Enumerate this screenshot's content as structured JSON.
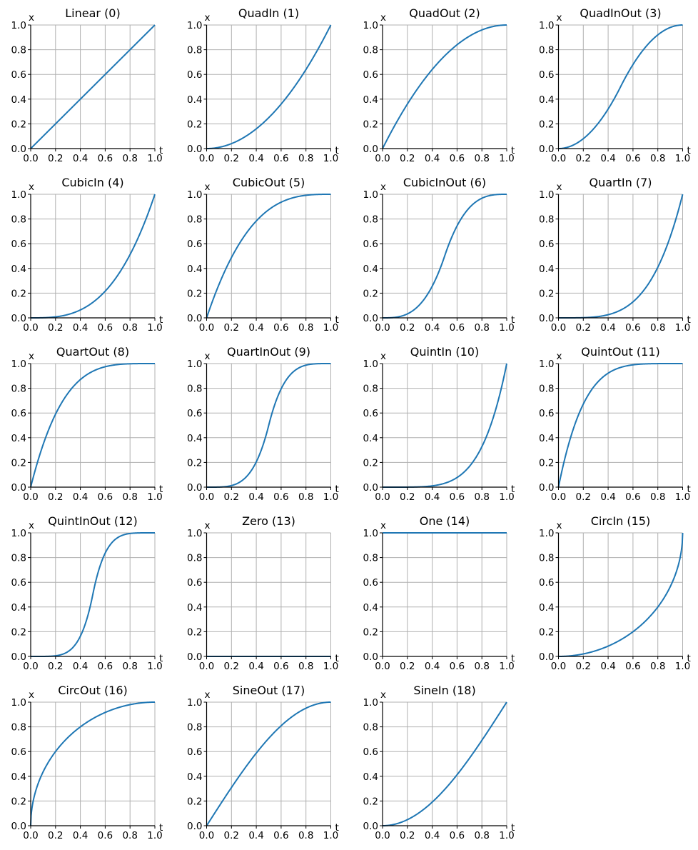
{
  "figure": {
    "ncols": 4,
    "nrows": 5,
    "line_color": "#1f77b4",
    "grid_color": "#b0b0b0"
  },
  "chart_data": [
    {
      "type": "line",
      "title": "Linear (0)",
      "easing": "linear",
      "xlabel": "t",
      "ylabel": "x",
      "xlim": [
        0,
        1
      ],
      "ylim": [
        0,
        1
      ],
      "xticks": [
        "0.0",
        "0.2",
        "0.4",
        "0.6",
        "0.8",
        "1.0"
      ],
      "yticks": [
        "0.0",
        "0.2",
        "0.4",
        "0.6",
        "0.8",
        "1.0"
      ],
      "grid": true
    },
    {
      "type": "line",
      "title": "QuadIn (1)",
      "easing": "quadIn",
      "xlabel": "t",
      "ylabel": "x",
      "xlim": [
        0,
        1
      ],
      "ylim": [
        0,
        1
      ],
      "xticks": [
        "0.0",
        "0.2",
        "0.4",
        "0.6",
        "0.8",
        "1.0"
      ],
      "yticks": [
        "0.0",
        "0.2",
        "0.4",
        "0.6",
        "0.8",
        "1.0"
      ],
      "grid": true
    },
    {
      "type": "line",
      "title": "QuadOut (2)",
      "easing": "quadOut",
      "xlabel": "t",
      "ylabel": "x",
      "xlim": [
        0,
        1
      ],
      "ylim": [
        0,
        1
      ],
      "xticks": [
        "0.0",
        "0.2",
        "0.4",
        "0.6",
        "0.8",
        "1.0"
      ],
      "yticks": [
        "0.0",
        "0.2",
        "0.4",
        "0.6",
        "0.8",
        "1.0"
      ],
      "grid": true
    },
    {
      "type": "line",
      "title": "QuadInOut (3)",
      "easing": "quadInOut",
      "xlabel": "t",
      "ylabel": "x",
      "xlim": [
        0,
        1
      ],
      "ylim": [
        0,
        1
      ],
      "xticks": [
        "0.0",
        "0.2",
        "0.4",
        "0.6",
        "0.8",
        "1.0"
      ],
      "yticks": [
        "0.0",
        "0.2",
        "0.4",
        "0.6",
        "0.8",
        "1.0"
      ],
      "grid": true
    },
    {
      "type": "line",
      "title": "CubicIn (4)",
      "easing": "cubicIn",
      "xlabel": "t",
      "ylabel": "x",
      "xlim": [
        0,
        1
      ],
      "ylim": [
        0,
        1
      ],
      "xticks": [
        "0.0",
        "0.2",
        "0.4",
        "0.6",
        "0.8",
        "1.0"
      ],
      "yticks": [
        "0.0",
        "0.2",
        "0.4",
        "0.6",
        "0.8",
        "1.0"
      ],
      "grid": true
    },
    {
      "type": "line",
      "title": "CubicOut (5)",
      "easing": "cubicOut",
      "xlabel": "t",
      "ylabel": "x",
      "xlim": [
        0,
        1
      ],
      "ylim": [
        0,
        1
      ],
      "xticks": [
        "0.0",
        "0.2",
        "0.4",
        "0.6",
        "0.8",
        "1.0"
      ],
      "yticks": [
        "0.0",
        "0.2",
        "0.4",
        "0.6",
        "0.8",
        "1.0"
      ],
      "grid": true
    },
    {
      "type": "line",
      "title": "CubicInOut (6)",
      "easing": "cubicInOut",
      "xlabel": "t",
      "ylabel": "x",
      "xlim": [
        0,
        1
      ],
      "ylim": [
        0,
        1
      ],
      "xticks": [
        "0.0",
        "0.2",
        "0.4",
        "0.6",
        "0.8",
        "1.0"
      ],
      "yticks": [
        "0.0",
        "0.2",
        "0.4",
        "0.6",
        "0.8",
        "1.0"
      ],
      "grid": true
    },
    {
      "type": "line",
      "title": "QuartIn (7)",
      "easing": "quartIn",
      "xlabel": "t",
      "ylabel": "x",
      "xlim": [
        0,
        1
      ],
      "ylim": [
        0,
        1
      ],
      "xticks": [
        "0.0",
        "0.2",
        "0.4",
        "0.6",
        "0.8",
        "1.0"
      ],
      "yticks": [
        "0.0",
        "0.2",
        "0.4",
        "0.6",
        "0.8",
        "1.0"
      ],
      "grid": true
    },
    {
      "type": "line",
      "title": "QuartOut (8)",
      "easing": "quartOut",
      "xlabel": "t",
      "ylabel": "x",
      "xlim": [
        0,
        1
      ],
      "ylim": [
        0,
        1
      ],
      "xticks": [
        "0.0",
        "0.2",
        "0.4",
        "0.6",
        "0.8",
        "1.0"
      ],
      "yticks": [
        "0.0",
        "0.2",
        "0.4",
        "0.6",
        "0.8",
        "1.0"
      ],
      "grid": true
    },
    {
      "type": "line",
      "title": "QuartInOut (9)",
      "easing": "quartInOut",
      "xlabel": "t",
      "ylabel": "x",
      "xlim": [
        0,
        1
      ],
      "ylim": [
        0,
        1
      ],
      "xticks": [
        "0.0",
        "0.2",
        "0.4",
        "0.6",
        "0.8",
        "1.0"
      ],
      "yticks": [
        "0.0",
        "0.2",
        "0.4",
        "0.6",
        "0.8",
        "1.0"
      ],
      "grid": true
    },
    {
      "type": "line",
      "title": "QuintIn (10)",
      "easing": "quintIn",
      "xlabel": "t",
      "ylabel": "x",
      "xlim": [
        0,
        1
      ],
      "ylim": [
        0,
        1
      ],
      "xticks": [
        "0.0",
        "0.2",
        "0.4",
        "0.6",
        "0.8",
        "1.0"
      ],
      "yticks": [
        "0.0",
        "0.2",
        "0.4",
        "0.6",
        "0.8",
        "1.0"
      ],
      "grid": true
    },
    {
      "type": "line",
      "title": "QuintOut (11)",
      "easing": "quintOut",
      "xlabel": "t",
      "ylabel": "x",
      "xlim": [
        0,
        1
      ],
      "ylim": [
        0,
        1
      ],
      "xticks": [
        "0.0",
        "0.2",
        "0.4",
        "0.6",
        "0.8",
        "1.0"
      ],
      "yticks": [
        "0.0",
        "0.2",
        "0.4",
        "0.6",
        "0.8",
        "1.0"
      ],
      "grid": true
    },
    {
      "type": "line",
      "title": "QuintInOut (12)",
      "easing": "quintInOut",
      "xlabel": "t",
      "ylabel": "x",
      "xlim": [
        0,
        1
      ],
      "ylim": [
        0,
        1
      ],
      "xticks": [
        "0.0",
        "0.2",
        "0.4",
        "0.6",
        "0.8",
        "1.0"
      ],
      "yticks": [
        "0.0",
        "0.2",
        "0.4",
        "0.6",
        "0.8",
        "1.0"
      ],
      "grid": true
    },
    {
      "type": "line",
      "title": "Zero (13)",
      "easing": "zero",
      "xlabel": "t",
      "ylabel": "x",
      "xlim": [
        0,
        1
      ],
      "ylim": [
        0,
        1
      ],
      "xticks": [
        "0.0",
        "0.2",
        "0.4",
        "0.6",
        "0.8",
        "1.0"
      ],
      "yticks": [
        "0.0",
        "0.2",
        "0.4",
        "0.6",
        "0.8",
        "1.0"
      ],
      "grid": true
    },
    {
      "type": "line",
      "title": "One (14)",
      "easing": "one",
      "xlabel": "t",
      "ylabel": "x",
      "xlim": [
        0,
        1
      ],
      "ylim": [
        0,
        1
      ],
      "xticks": [
        "0.0",
        "0.2",
        "0.4",
        "0.6",
        "0.8",
        "1.0"
      ],
      "yticks": [
        "0.0",
        "0.2",
        "0.4",
        "0.6",
        "0.8",
        "1.0"
      ],
      "grid": true
    },
    {
      "type": "line",
      "title": "CircIn (15)",
      "easing": "circIn",
      "xlabel": "t",
      "ylabel": "x",
      "xlim": [
        0,
        1
      ],
      "ylim": [
        0,
        1
      ],
      "xticks": [
        "0.0",
        "0.2",
        "0.4",
        "0.6",
        "0.8",
        "1.0"
      ],
      "yticks": [
        "0.0",
        "0.2",
        "0.4",
        "0.6",
        "0.8",
        "1.0"
      ],
      "grid": true
    },
    {
      "type": "line",
      "title": "CircOut (16)",
      "easing": "circOut",
      "xlabel": "t",
      "ylabel": "x",
      "xlim": [
        0,
        1
      ],
      "ylim": [
        0,
        1
      ],
      "xticks": [
        "0.0",
        "0.2",
        "0.4",
        "0.6",
        "0.8",
        "1.0"
      ],
      "yticks": [
        "0.0",
        "0.2",
        "0.4",
        "0.6",
        "0.8",
        "1.0"
      ],
      "grid": true
    },
    {
      "type": "line",
      "title": "SineOut (17)",
      "easing": "sineOut",
      "xlabel": "t",
      "ylabel": "x",
      "xlim": [
        0,
        1
      ],
      "ylim": [
        0,
        1
      ],
      "xticks": [
        "0.0",
        "0.2",
        "0.4",
        "0.6",
        "0.8",
        "1.0"
      ],
      "yticks": [
        "0.0",
        "0.2",
        "0.4",
        "0.6",
        "0.8",
        "1.0"
      ],
      "grid": true
    },
    {
      "type": "line",
      "title": "SineIn (18)",
      "easing": "sineIn",
      "xlabel": "t",
      "ylabel": "x",
      "xlim": [
        0,
        1
      ],
      "ylim": [
        0,
        1
      ],
      "xticks": [
        "0.0",
        "0.2",
        "0.4",
        "0.6",
        "0.8",
        "1.0"
      ],
      "yticks": [
        "0.0",
        "0.2",
        "0.4",
        "0.6",
        "0.8",
        "1.0"
      ],
      "grid": true
    }
  ]
}
